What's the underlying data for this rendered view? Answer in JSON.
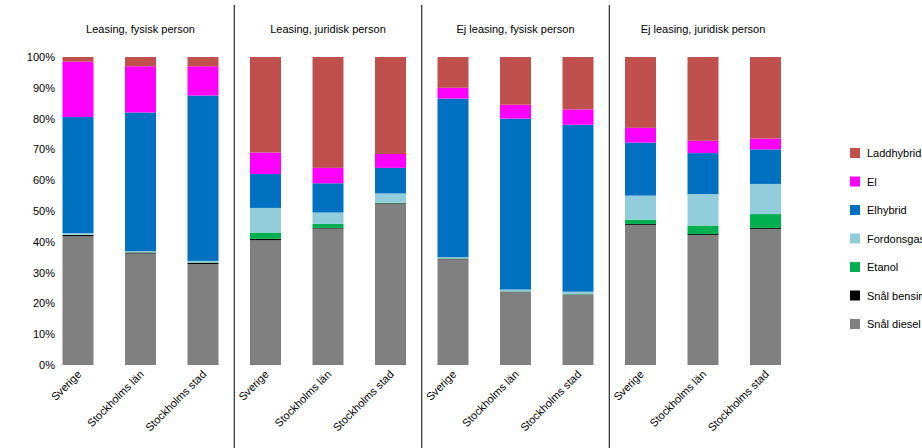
{
  "chart_data": {
    "type": "bar",
    "stacked": true,
    "grid": false,
    "legend": "right",
    "panels": [
      "Leasing, fysisk person",
      "Leasing, juridisk person",
      "Ej leasing, fysisk person",
      "Ej leasing, juridisk person"
    ],
    "categories": [
      "Sverige",
      "Stockholms län",
      "Stockholms stad",
      "Sverige",
      "Stockholms län",
      "Stockholms stad",
      "Sverige",
      "Stockholms län",
      "Stockholms stad",
      "Sverige",
      "Stockholms län",
      "Stockholms stad"
    ],
    "ylim": [
      0,
      100
    ],
    "yticks": [
      {
        "value": 0,
        "label": "0%"
      },
      {
        "value": 10,
        "label": "10%"
      },
      {
        "value": 20,
        "label": "20%"
      },
      {
        "value": 30,
        "label": "30%"
      },
      {
        "value": 40,
        "label": "40%"
      },
      {
        "value": 50,
        "label": "50%"
      },
      {
        "value": 60,
        "label": "60%"
      },
      {
        "value": 70,
        "label": "70%"
      },
      {
        "value": 80,
        "label": "80%"
      },
      {
        "value": 90,
        "label": "90%"
      },
      {
        "value": 100,
        "label": "100%"
      }
    ],
    "series": [
      {
        "name": "Snål diesel",
        "color": "#808080",
        "values": [
          41.8,
          36.2,
          32.8,
          40.5,
          44.3,
          52.3,
          34.3,
          23.7,
          22.8,
          45.5,
          42.2,
          44.2
        ]
      },
      {
        "name": "Snål bensin",
        "color": "#000000",
        "values": [
          0.4,
          0.3,
          0.4,
          0.5,
          0.2,
          0.2,
          0.2,
          0.1,
          0.1,
          0.3,
          0.3,
          0.3
        ]
      },
      {
        "name": "Etanol",
        "color": "#00b050",
        "values": [
          0.1,
          0.1,
          0.1,
          2,
          1.3,
          0.2,
          0.1,
          0.1,
          0.1,
          1.4,
          2.8,
          4.5
        ]
      },
      {
        "name": "Fordonsgas",
        "color": "#92cddc",
        "values": [
          0.5,
          0.4,
          0.5,
          8,
          3.7,
          3,
          0.4,
          0.6,
          0.8,
          7.8,
          10.2,
          9.8
        ]
      },
      {
        "name": "Elhybrid",
        "color": "#0070c0",
        "values": [
          37.7,
          45,
          53.7,
          11,
          9.5,
          8.3,
          51.5,
          55.5,
          54.2,
          17.2,
          13.3,
          11.2
        ]
      },
      {
        "name": "El",
        "color": "#ff00ff",
        "values": [
          18,
          15,
          9.5,
          7,
          5,
          4.5,
          3.5,
          4.5,
          5,
          4.8,
          4,
          3.5
        ]
      },
      {
        "name": "Laddhybrid",
        "color": "#c0504d",
        "values": [
          1.5,
          3,
          3,
          31,
          36,
          31.5,
          10,
          15.5,
          17,
          23,
          27.2,
          26.5
        ]
      }
    ]
  }
}
